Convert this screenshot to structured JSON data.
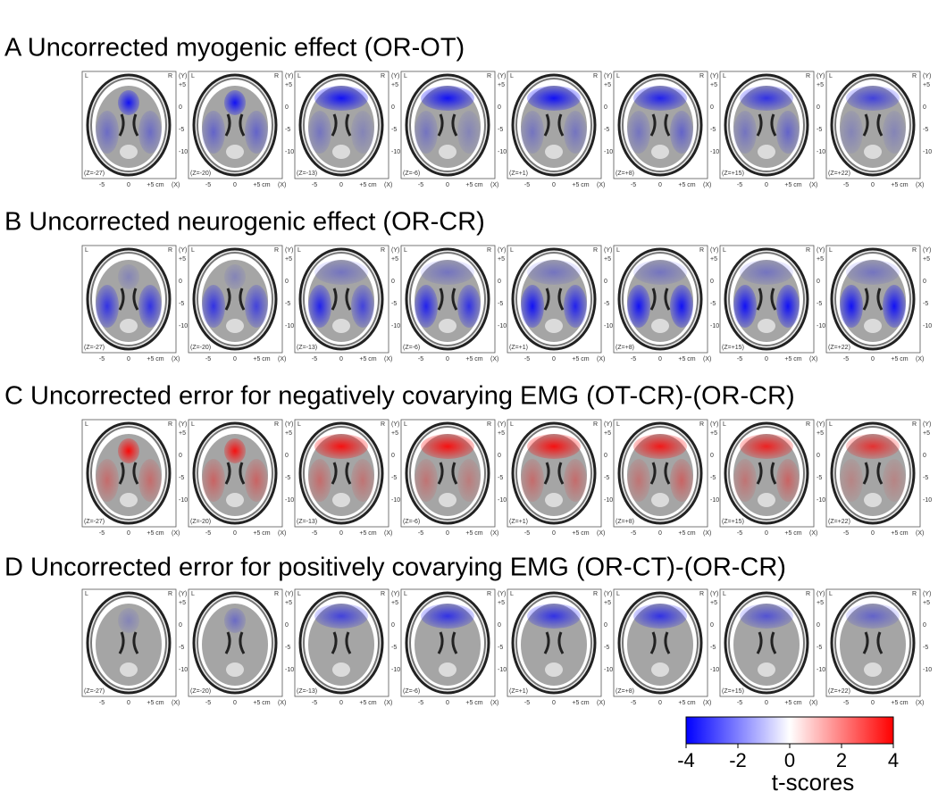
{
  "rows": [
    {
      "title": "A Uncorrected myogenic effect (OR-OT)",
      "overlay_color": "#0000ff"
    },
    {
      "title": "B Uncorrected neurogenic effect (OR-CR)",
      "overlay_color": "#0000ff"
    },
    {
      "title": "C Uncorrected error for negatively covarying EMG (OT-CR)-(OR-CR)",
      "overlay_color": "#ff0000"
    },
    {
      "title": "D Uncorrected error for positively covarying EMG (OR-CT)-(OR-CR)",
      "overlay_color": "#0000ff"
    }
  ],
  "slices": [
    "(Z=-27)",
    "(Z=-20)",
    "(Z=-13)",
    "(Z=-6)",
    "(Z=+1)",
    "(Z=+8)",
    "(Z=+15)",
    "(Z=+22)"
  ],
  "panel_axes": {
    "left": "L",
    "right": "R",
    "y_unit": "(Y)",
    "y_ticks": [
      "+5",
      "0",
      "-5",
      "-10"
    ],
    "x_ticks": [
      "-5",
      "0",
      "+5 cm"
    ],
    "x_unit": "(X)"
  },
  "colorbar": {
    "ticks": [
      -4,
      -2,
      0,
      2,
      4
    ],
    "label": "t-scores",
    "colors": [
      "#0000ff",
      "#ffffff",
      "#ff0000"
    ]
  }
}
